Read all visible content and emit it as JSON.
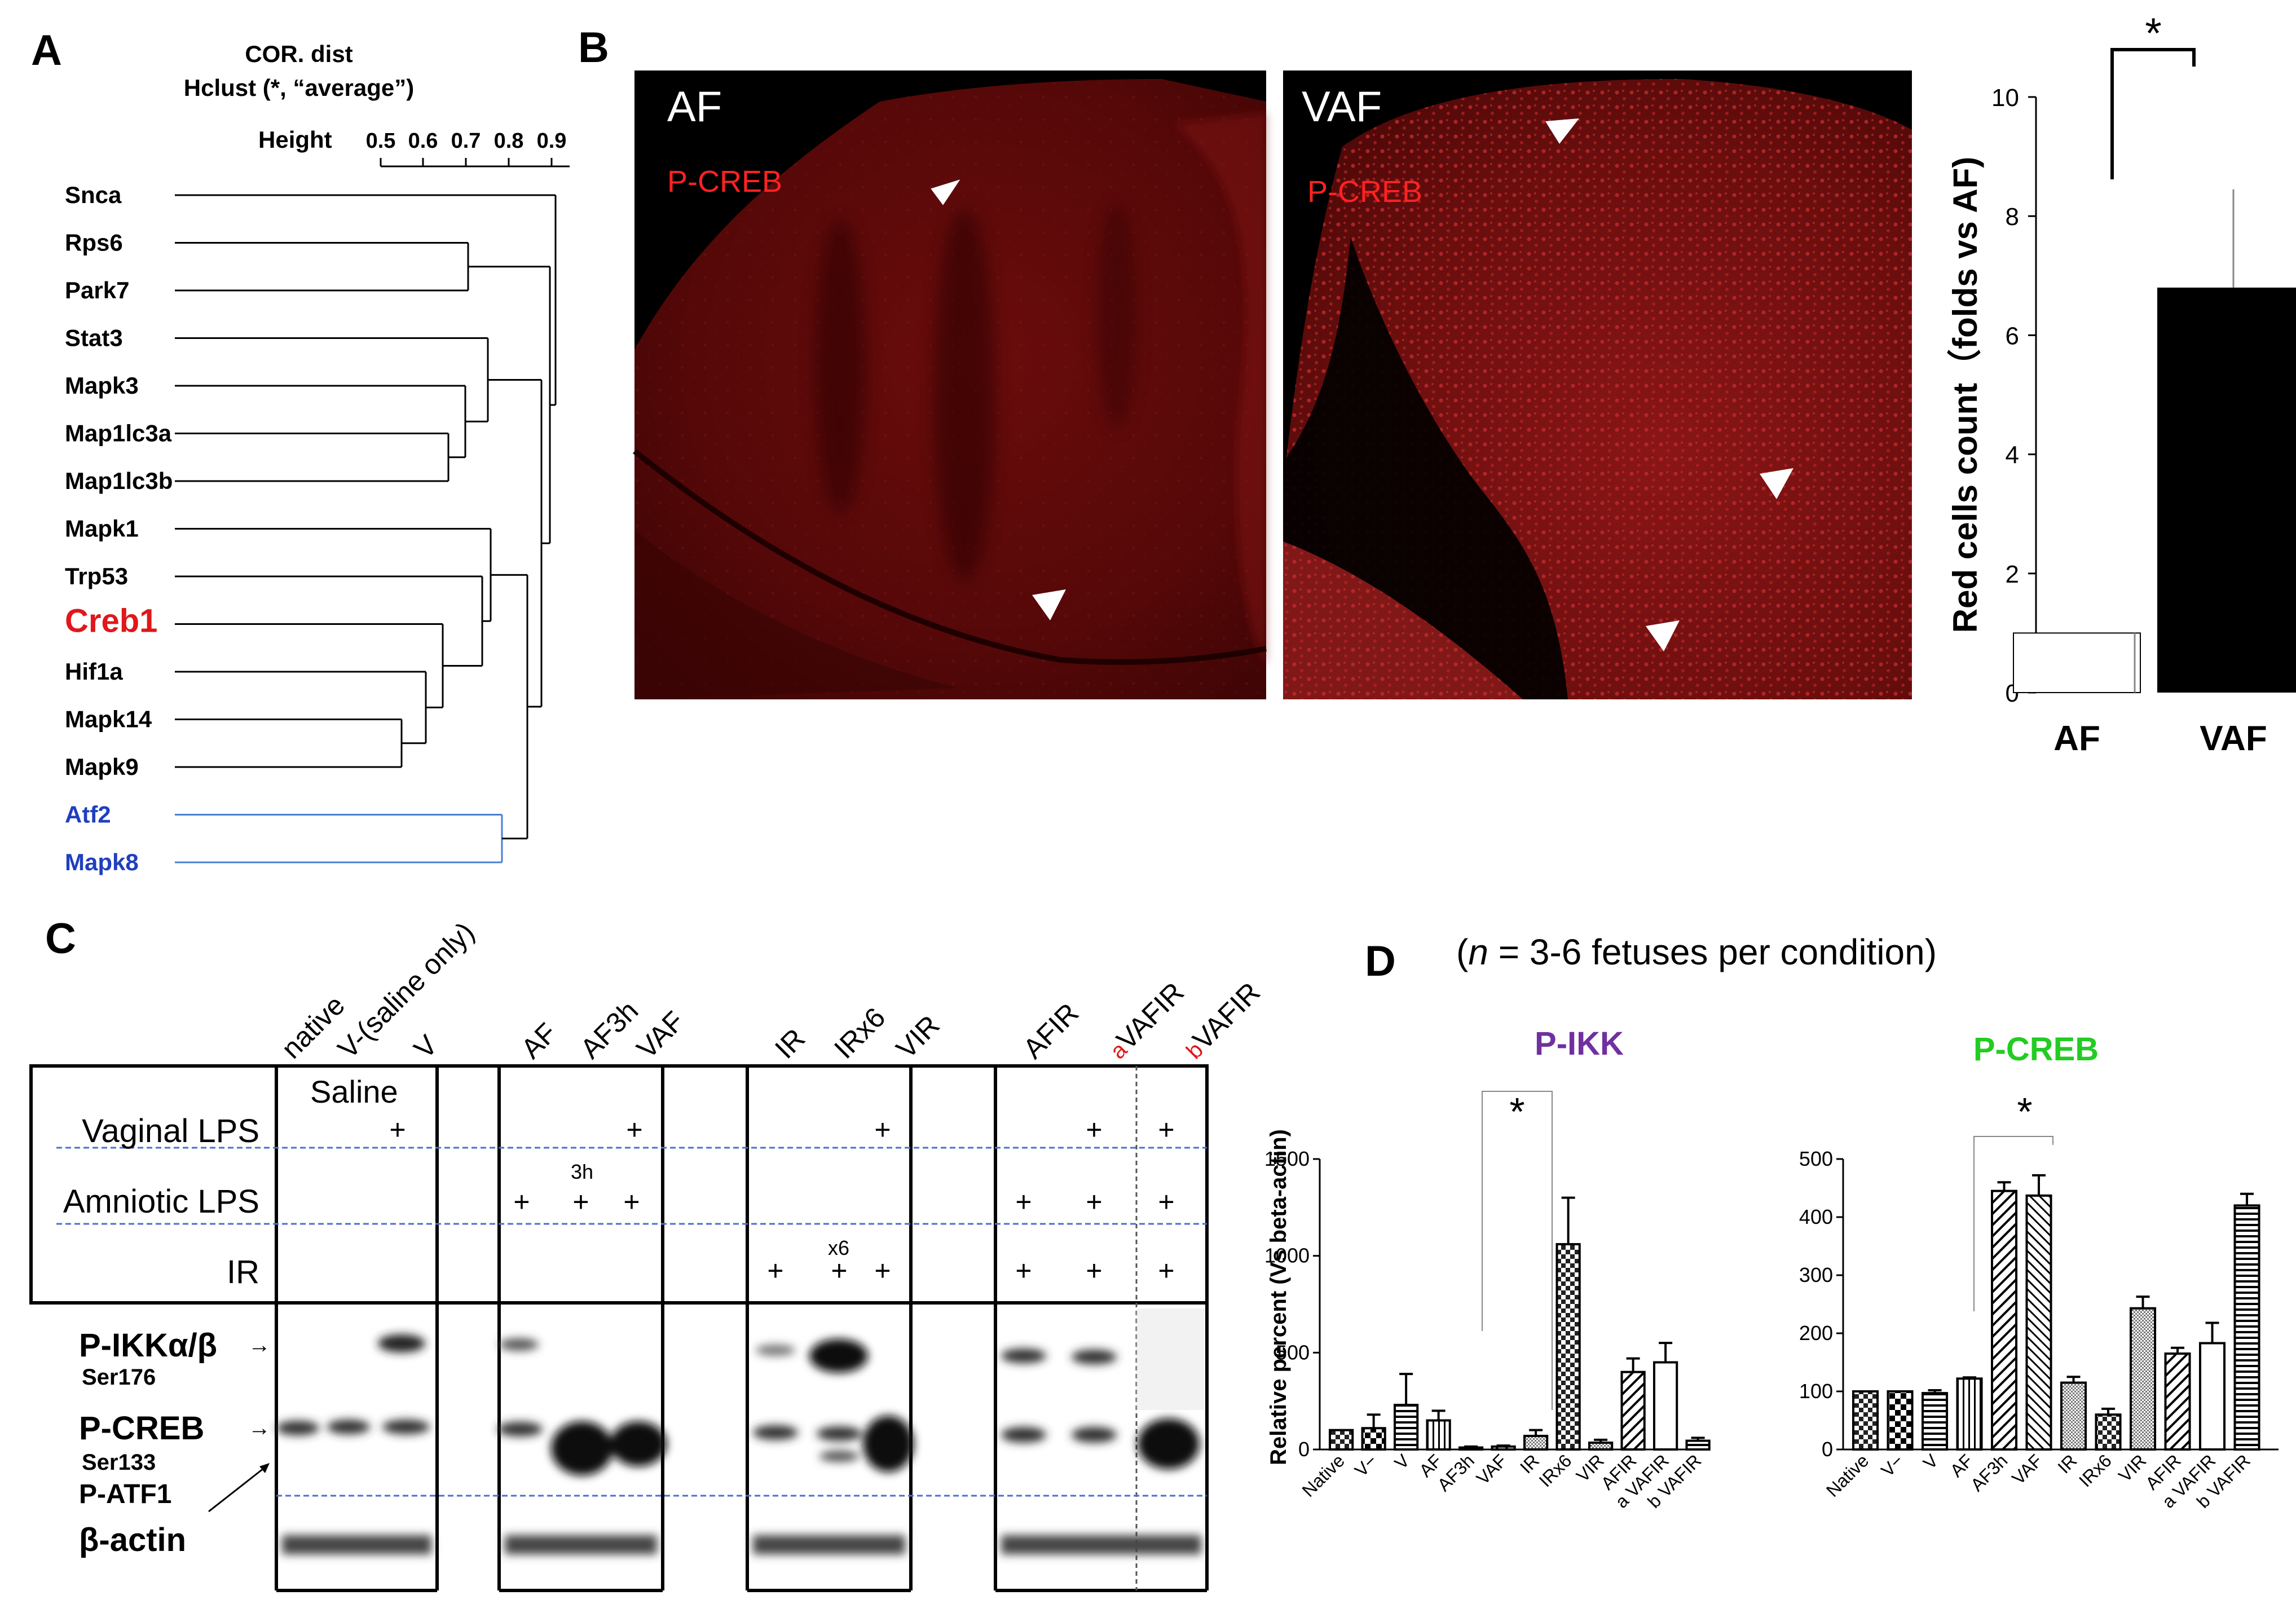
{
  "panels": {
    "A": {
      "letter": "A",
      "title_line1": "COR. dist",
      "title_line2": "Hclust (*, “average”)",
      "height_label": "Height",
      "scale_ticks": [
        "0.5",
        "0.6",
        "0.7",
        "0.8",
        "0.9"
      ],
      "genes": [
        {
          "name": "Snca",
          "color": "#000000"
        },
        {
          "name": "Rps6",
          "color": "#000000"
        },
        {
          "name": "Park7",
          "color": "#000000"
        },
        {
          "name": "Stat3",
          "color": "#000000"
        },
        {
          "name": "Mapk3",
          "color": "#000000"
        },
        {
          "name": "Map1lc3a",
          "color": "#000000"
        },
        {
          "name": "Map1lc3b",
          "color": "#000000"
        },
        {
          "name": "Mapk1",
          "color": "#000000"
        },
        {
          "name": "Trp53",
          "color": "#000000"
        },
        {
          "name": "Creb1",
          "color": "#e0171b"
        },
        {
          "name": "Hif1a",
          "color": "#000000"
        },
        {
          "name": "Mapk14",
          "color": "#000000"
        },
        {
          "name": "Mapk9",
          "color": "#000000"
        },
        {
          "name": "Atf2",
          "color": "#1f3fbf"
        },
        {
          "name": "Mapk8",
          "color": "#1f3fbf"
        }
      ]
    },
    "B": {
      "letter": "B",
      "image_af_label": "AF",
      "image_vaf_label": "VAF",
      "stain_label": "P-CREB",
      "significance": "*",
      "chart_data": {
        "type": "bar",
        "categories": [
          "AF",
          "VAF"
        ],
        "values": [
          1,
          6.8
        ],
        "error_upper": [
          1,
          8.45
        ],
        "ylabel": "Red cells count（folds vs AF)",
        "ylim": [
          0,
          10
        ],
        "yticks": [
          "0",
          "2",
          "4",
          "6",
          "8",
          "10"
        ],
        "colors": [
          "#ffffff",
          "#000000"
        ]
      }
    },
    "C": {
      "letter": "C",
      "lane_labels": [
        "native",
        "V-(saline only)",
        "V",
        "AF",
        "AF3h",
        "VAF",
        "IR",
        "IRx6",
        "VIR",
        "AFIR",
        "VAFIR",
        "VAFIR"
      ],
      "lane_superscripts": [
        "a",
        "b"
      ],
      "saline": "Saline",
      "row_labels": [
        "Vaginal LPS",
        "Amniotic LPS",
        "IR"
      ],
      "plus": "+",
      "note_3h": "3h",
      "note_x6": "x6",
      "blot_labels": {
        "ikk": "P-IKKα/β",
        "ikk_site": "Ser176",
        "creb": "P-CREB",
        "creb_site": "Ser133",
        "atf1": "P-ATF1",
        "actin": "β-actin"
      }
    },
    "D": {
      "letter": "D",
      "subtitle_n": "n",
      "subtitle_rest": " = 3-6 fetuses per condition)",
      "subtitle_open": "(",
      "ylabel": "Relative percent (Vs beta-actin)",
      "significance": "*",
      "chart_data": [
        {
          "type": "bar",
          "title": "P-IKK",
          "title_color": "#7030a0",
          "categories": [
            "Native",
            "V−",
            "V",
            "AF",
            "AF3h",
            "VAF",
            "IR",
            "IRx6",
            "VIR",
            "AFIR",
            "a VAFIR",
            "b VAFIR"
          ],
          "values": [
            100,
            110,
            230,
            150,
            10,
            15,
            70,
            1060,
            35,
            400,
            450,
            45
          ],
          "errors": [
            0,
            70,
            160,
            50,
            5,
            5,
            30,
            240,
            15,
            70,
            100,
            15
          ],
          "ylim": [
            0,
            1500
          ],
          "yticks": [
            "0",
            "500",
            "1000",
            "1500"
          ]
        },
        {
          "type": "bar",
          "title": "P-CREB",
          "title_color": "#22cc22",
          "categories": [
            "Native",
            "V−",
            "V",
            "AF",
            "AF3h",
            "VAF",
            "IR",
            "IRx6",
            "VIR",
            "AFIR",
            "a VAFIR",
            "b VAFIR"
          ],
          "values": [
            100,
            100,
            97,
            122,
            445,
            437,
            115,
            60,
            243,
            165,
            183,
            420
          ],
          "errors": [
            0,
            0,
            5,
            2,
            15,
            35,
            10,
            10,
            20,
            10,
            35,
            20
          ],
          "ylim": [
            0,
            500
          ],
          "yticks": [
            "0",
            "100",
            "200",
            "300",
            "400",
            "500"
          ]
        }
      ]
    }
  }
}
